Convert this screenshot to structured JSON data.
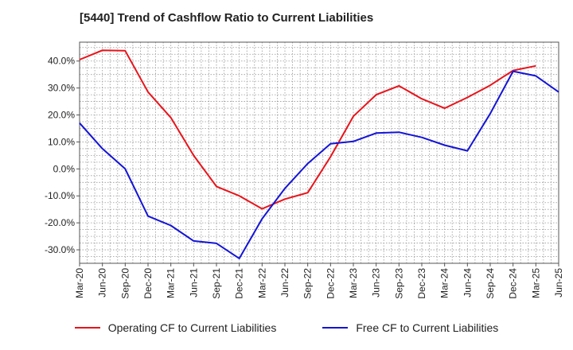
{
  "title": "[5440]  Trend of Cashflow Ratio to Current Liabilities",
  "chart_data": {
    "type": "line",
    "title": "[5440]  Trend of Cashflow Ratio to Current Liabilities",
    "xlabel": "",
    "ylabel": "",
    "categories": [
      "Mar-20",
      "Jun-20",
      "Sep-20",
      "Dec-20",
      "Mar-21",
      "Jun-21",
      "Sep-21",
      "Dec-21",
      "Mar-22",
      "Jun-22",
      "Sep-22",
      "Dec-22",
      "Mar-23",
      "Jun-23",
      "Sep-23",
      "Dec-23",
      "Mar-24",
      "Jun-24",
      "Sep-24",
      "Dec-24",
      "Mar-25",
      "Jun-25"
    ],
    "ylim": [
      -35,
      47
    ],
    "yticks": [
      -30,
      -20,
      -10,
      0,
      10,
      20,
      30,
      40
    ],
    "ytick_labels": [
      "-30.0%",
      "-20.0%",
      "-10.0%",
      "0.0%",
      "10.0%",
      "20.0%",
      "30.0%",
      "40.0%"
    ],
    "grid": true,
    "legend_position": "bottom",
    "series": [
      {
        "name": "Operating CF to Current Liabilities",
        "color": "#e8141b",
        "values": [
          40.5,
          44.0,
          43.8,
          28.5,
          19.0,
          5.0,
          -6.5,
          -10.0,
          -14.8,
          -11.2,
          -8.8,
          4.5,
          19.5,
          27.5,
          30.8,
          26.0,
          22.5,
          26.5,
          31.0,
          36.5,
          38.2,
          null
        ]
      },
      {
        "name": "Free CF to Current Liabilities",
        "color": "#1414d6",
        "values": [
          17.0,
          7.5,
          0.0,
          -17.5,
          -21.0,
          -26.7,
          -27.6,
          -33.2,
          -18.5,
          -7.2,
          2.0,
          9.3,
          10.2,
          13.3,
          13.6,
          11.7,
          8.8,
          6.7,
          20.5,
          36.2,
          34.5,
          28.5
        ]
      }
    ]
  }
}
